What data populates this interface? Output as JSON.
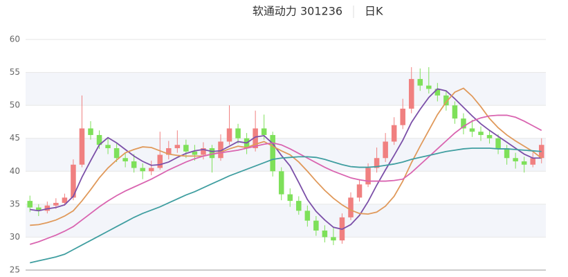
{
  "chart_data": {
    "type": "candlestick",
    "title": "软通动力 301236",
    "subtitle": "日K",
    "ylim": [
      25,
      60
    ],
    "yticks": [
      25,
      30,
      35,
      40,
      45,
      50,
      55,
      60
    ],
    "split_area": true,
    "rise_color": "#f08080",
    "fall_color": "#7ee05a",
    "open": [
      35.5,
      34.5,
      34.0,
      34.8,
      35.2,
      36.0,
      41.0,
      46.5,
      45.5,
      44.0,
      43.5,
      42.0,
      41.5,
      40.5,
      40.0,
      40.5,
      42.5,
      43.5,
      44.0,
      43.0,
      42.5,
      43.5,
      42.0,
      44.5,
      46.5,
      45.0,
      43.5,
      46.5,
      45.5,
      40.0,
      36.5,
      35.5,
      34.0,
      32.5,
      31.0,
      30.0,
      29.5,
      33.0,
      36.0,
      38.0,
      40.5,
      42.0,
      44.5,
      47.0,
      49.5,
      54.0,
      53.0,
      52.5,
      51.5,
      50.0,
      48.0,
      46.5,
      46.0,
      45.5,
      45.0,
      43.5,
      42.0,
      41.5,
      41.0,
      42.0
    ],
    "high": [
      36.3,
      35.0,
      35.4,
      35.9,
      36.6,
      41.8,
      51.5,
      47.6,
      46.2,
      45.0,
      44.2,
      42.8,
      42.6,
      41.2,
      41.6,
      46.0,
      44.6,
      46.2,
      44.8,
      44.0,
      44.4,
      44.0,
      45.6,
      50.0,
      47.2,
      45.8,
      49.2,
      48.6,
      46.0,
      40.6,
      37.4,
      36.2,
      34.8,
      33.2,
      31.8,
      31.4,
      33.6,
      36.8,
      38.8,
      41.2,
      43.6,
      45.8,
      48.2,
      51.0,
      55.8,
      55.6,
      55.8,
      53.4,
      52.2,
      50.6,
      48.8,
      47.8,
      46.8,
      46.2,
      45.6,
      44.0,
      42.8,
      42.2,
      42.8,
      45.0
    ],
    "low": [
      33.8,
      33.2,
      33.6,
      34.3,
      34.8,
      35.6,
      40.6,
      44.8,
      43.4,
      42.6,
      41.4,
      40.6,
      39.8,
      38.8,
      39.4,
      40.2,
      41.8,
      42.8,
      42.0,
      41.6,
      41.8,
      39.8,
      41.6,
      44.0,
      44.2,
      42.6,
      43.0,
      44.8,
      39.2,
      35.6,
      34.6,
      33.4,
      31.6,
      30.2,
      29.2,
      28.8,
      29.0,
      32.6,
      35.4,
      37.6,
      39.8,
      41.4,
      44.0,
      46.4,
      48.8,
      52.2,
      51.8,
      50.6,
      49.2,
      47.2,
      45.6,
      45.2,
      44.6,
      44.2,
      42.6,
      41.0,
      40.4,
      39.8,
      40.6,
      41.2
    ],
    "close": [
      34.5,
      34.0,
      34.8,
      35.2,
      36.0,
      41.0,
      46.5,
      45.5,
      44.0,
      43.5,
      42.0,
      41.5,
      40.5,
      40.0,
      40.5,
      42.5,
      43.5,
      44.0,
      43.0,
      42.5,
      43.5,
      42.0,
      44.5,
      46.5,
      45.0,
      43.5,
      46.5,
      45.5,
      40.0,
      36.5,
      35.5,
      34.0,
      32.5,
      31.0,
      30.0,
      29.5,
      33.0,
      36.0,
      38.0,
      40.5,
      42.0,
      44.5,
      47.0,
      49.5,
      54.0,
      53.0,
      52.5,
      51.5,
      50.0,
      48.0,
      46.5,
      46.0,
      45.5,
      45.0,
      43.5,
      42.0,
      41.5,
      41.0,
      42.0,
      44.0
    ],
    "series": [
      {
        "color": "#7b4fa8",
        "values": [
          34.2,
          34.0,
          34.3,
          34.5,
          34.9,
          36.2,
          39.1,
          41.6,
          44.0,
          45.1,
          44.3,
          43.3,
          42.3,
          41.5,
          40.9,
          41.0,
          41.4,
          42.1,
          42.7,
          43.1,
          43.3,
          43.0,
          43.1,
          43.8,
          44.5,
          44.3,
          45.2,
          45.4,
          44.2,
          42.4,
          40.8,
          38.3,
          35.7,
          33.9,
          32.6,
          31.5,
          31.2,
          31.9,
          33.3,
          35.4,
          37.9,
          40.2,
          42.4,
          44.7,
          47.4,
          49.4,
          51.2,
          52.5,
          52.2,
          51.0,
          49.7,
          48.4,
          47.2,
          46.2,
          45.3,
          44.4,
          43.5,
          42.6,
          42.0,
          42.0
        ]
      },
      {
        "color": "#e0995a",
        "values": [
          31.8,
          31.9,
          32.2,
          32.6,
          33.2,
          34.0,
          35.5,
          37.2,
          39.0,
          40.5,
          41.7,
          42.8,
          43.3,
          43.7,
          43.6,
          43.1,
          42.6,
          42.4,
          42.3,
          42.3,
          42.3,
          42.6,
          42.9,
          43.4,
          43.8,
          43.6,
          44.1,
          44.5,
          43.8,
          43.1,
          42.5,
          41.4,
          40.0,
          38.5,
          37.1,
          35.9,
          34.9,
          34.1,
          33.6,
          33.5,
          33.8,
          34.7,
          36.2,
          38.5,
          41.3,
          43.8,
          46.2,
          48.6,
          50.5,
          52.0,
          52.6,
          51.4,
          49.8,
          48.0,
          46.6,
          45.5,
          44.6,
          43.8,
          43.0,
          42.0
        ]
      },
      {
        "color": "#d964b0",
        "values": [
          28.9,
          29.3,
          29.8,
          30.3,
          30.9,
          31.6,
          32.6,
          33.6,
          34.6,
          35.5,
          36.3,
          37.0,
          37.6,
          38.2,
          38.8,
          39.5,
          40.2,
          40.8,
          41.4,
          41.9,
          42.3,
          42.6,
          42.8,
          43.0,
          43.2,
          43.5,
          43.8,
          44.1,
          44.3,
          44.0,
          43.4,
          42.7,
          42.0,
          41.3,
          40.6,
          40.0,
          39.5,
          39.0,
          38.7,
          38.5,
          38.5,
          38.5,
          38.6,
          38.8,
          39.8,
          41.0,
          42.2,
          43.4,
          44.6,
          45.8,
          46.8,
          47.6,
          48.1,
          48.4,
          48.5,
          48.5,
          48.2,
          47.6,
          46.9,
          46.2
        ]
      },
      {
        "color": "#3f9ea0",
        "values": [
          26.1,
          26.4,
          26.7,
          27.0,
          27.4,
          28.1,
          28.8,
          29.5,
          30.2,
          30.9,
          31.6,
          32.3,
          33.0,
          33.6,
          34.1,
          34.6,
          35.2,
          35.8,
          36.4,
          36.9,
          37.5,
          38.1,
          38.7,
          39.3,
          39.8,
          40.3,
          40.8,
          41.3,
          41.8,
          42.0,
          42.1,
          42.2,
          42.2,
          42.1,
          41.8,
          41.4,
          41.0,
          40.7,
          40.6,
          40.6,
          40.7,
          40.9,
          41.1,
          41.4,
          41.8,
          42.1,
          42.4,
          42.7,
          43.0,
          43.2,
          43.4,
          43.5,
          43.5,
          43.5,
          43.4,
          43.4,
          43.3,
          43.2,
          43.1,
          43.0
        ]
      }
    ]
  }
}
